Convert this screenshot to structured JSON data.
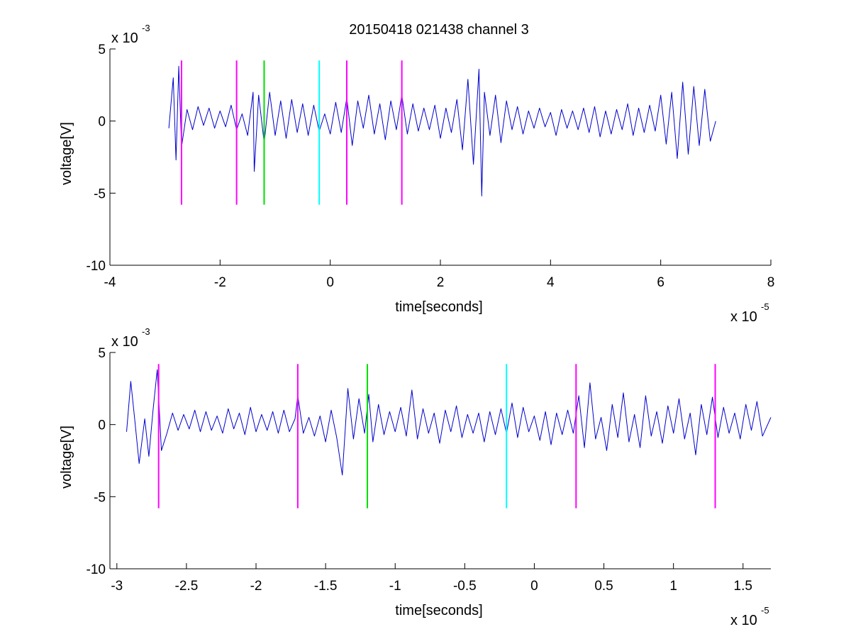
{
  "figure_title": "20150418 021438 channel 3",
  "chart_data": [
    {
      "type": "line",
      "title": "20150418 021438 channel 3",
      "xlabel": "time[seconds]",
      "ylabel": "voltage[V]",
      "x_multiplier_label": "x 10",
      "x_multiplier_exp": "-5",
      "y_multiplier_label": "x 10",
      "y_multiplier_exp": "-3",
      "xlim": [
        -4,
        8
      ],
      "ylim": [
        -10,
        5
      ],
      "xticks": [
        -4,
        -2,
        0,
        2,
        4,
        6,
        8
      ],
      "xtick_labels": [
        "-4",
        "-2",
        "0",
        "2",
        "4",
        "6",
        "8"
      ],
      "yticks": [
        -10,
        -5,
        0,
        5
      ],
      "ytick_labels": [
        "-10",
        "-5",
        "0",
        "5"
      ],
      "grid": false,
      "series": [
        {
          "color": "#0000cc",
          "x": [
            -2.93,
            -2.85,
            -2.8,
            -2.75,
            -2.7,
            -2.6,
            -2.5,
            -2.4,
            -2.3,
            -2.2,
            -2.1,
            -2.0,
            -1.9,
            -1.8,
            -1.7,
            -1.6,
            -1.5,
            -1.4,
            -1.38,
            -1.3,
            -1.2,
            -1.1,
            -1.0,
            -0.9,
            -0.8,
            -0.7,
            -0.6,
            -0.5,
            -0.4,
            -0.3,
            -0.2,
            -0.1,
            0.0,
            0.1,
            0.2,
            0.3,
            0.4,
            0.5,
            0.6,
            0.7,
            0.8,
            0.9,
            1.0,
            1.1,
            1.2,
            1.3,
            1.4,
            1.5,
            1.6,
            1.7,
            1.8,
            1.9,
            2.0,
            2.1,
            2.2,
            2.3,
            2.4,
            2.5,
            2.6,
            2.7,
            2.75,
            2.8,
            2.9,
            3.0,
            3.1,
            3.2,
            3.3,
            3.4,
            3.5,
            3.6,
            3.7,
            3.8,
            3.9,
            4.0,
            4.1,
            4.2,
            4.3,
            4.4,
            4.5,
            4.6,
            4.7,
            4.8,
            4.9,
            5.0,
            5.1,
            5.2,
            5.3,
            5.4,
            5.5,
            5.6,
            5.7,
            5.8,
            5.9,
            6.0,
            6.1,
            6.2,
            6.3,
            6.4,
            6.5,
            6.6,
            6.7,
            6.8,
            6.9,
            7.0
          ],
          "y": [
            -0.5,
            3.0,
            -2.7,
            3.8,
            -1.8,
            0.8,
            -0.6,
            1.0,
            -0.3,
            0.9,
            -0.5,
            0.7,
            -0.4,
            1.1,
            -0.6,
            0.5,
            -1.0,
            2.0,
            -3.5,
            1.8,
            -1.5,
            2.0,
            -1.0,
            1.4,
            -1.2,
            1.5,
            -0.8,
            1.2,
            -1.0,
            1.1,
            -0.7,
            0.5,
            -0.9,
            1.3,
            -0.8,
            1.6,
            -1.7,
            1.4,
            -0.5,
            1.8,
            -0.9,
            1.2,
            -1.3,
            1.4,
            -0.6,
            1.8,
            -0.9,
            1.2,
            -0.7,
            0.9,
            -0.6,
            1.1,
            -1.2,
            0.9,
            -0.8,
            1.5,
            -2.0,
            2.9,
            -3.0,
            3.6,
            -5.2,
            2.0,
            -1.0,
            1.8,
            -1.5,
            1.4,
            -0.6,
            1.0,
            -0.9,
            0.7,
            -0.5,
            0.9,
            -0.4,
            0.6,
            -1.0,
            0.8,
            -0.5,
            0.7,
            -0.6,
            0.9,
            -0.8,
            1.0,
            -1.1,
            0.7,
            -0.9,
            0.8,
            -0.6,
            1.2,
            -1.0,
            0.9,
            -0.8,
            1.1,
            -0.7,
            1.8,
            -1.6,
            2.0,
            -2.6,
            2.7,
            -2.3,
            2.4,
            -1.7,
            2.2,
            -1.4,
            0.0
          ]
        }
      ],
      "markers": [
        {
          "x": -2.7,
          "color": "#ff00ff"
        },
        {
          "x": -1.7,
          "color": "#ff00ff"
        },
        {
          "x": -1.2,
          "color": "#00dd00"
        },
        {
          "x": -0.2,
          "color": "#00ffff"
        },
        {
          "x": 0.3,
          "color": "#ff00ff"
        },
        {
          "x": 1.3,
          "color": "#ff00ff"
        }
      ],
      "marker_ylim": [
        -5.8,
        4.2
      ]
    },
    {
      "type": "line",
      "title": "",
      "xlabel": "time[seconds]",
      "ylabel": "voltage[V]",
      "x_multiplier_label": "x 10",
      "x_multiplier_exp": "-5",
      "y_multiplier_label": "x 10",
      "y_multiplier_exp": "-3",
      "xlim": [
        -3.05,
        1.7
      ],
      "ylim": [
        -10,
        5
      ],
      "xticks": [
        -3,
        -2.5,
        -2,
        -1.5,
        -1,
        -0.5,
        0,
        0.5,
        1,
        1.5
      ],
      "xtick_labels": [
        "-3",
        "-2.5",
        "-2",
        "-1.5",
        "-1",
        "-0.5",
        "0",
        "0.5",
        "1",
        "1.5"
      ],
      "yticks": [
        -10,
        -5,
        0,
        5
      ],
      "ytick_labels": [
        "-10",
        "-5",
        "0",
        "5"
      ],
      "grid": false,
      "series": [
        {
          "color": "#0000cc",
          "x": [
            -2.93,
            -2.9,
            -2.87,
            -2.84,
            -2.8,
            -2.77,
            -2.74,
            -2.71,
            -2.68,
            -2.64,
            -2.6,
            -2.56,
            -2.52,
            -2.48,
            -2.44,
            -2.4,
            -2.36,
            -2.32,
            -2.28,
            -2.24,
            -2.2,
            -2.16,
            -2.12,
            -2.08,
            -2.04,
            -2.0,
            -1.96,
            -1.92,
            -1.88,
            -1.84,
            -1.8,
            -1.76,
            -1.72,
            -1.7,
            -1.66,
            -1.62,
            -1.58,
            -1.54,
            -1.5,
            -1.46,
            -1.42,
            -1.38,
            -1.34,
            -1.3,
            -1.26,
            -1.22,
            -1.19,
            -1.16,
            -1.12,
            -1.08,
            -1.04,
            -1.0,
            -0.96,
            -0.92,
            -0.88,
            -0.84,
            -0.8,
            -0.76,
            -0.72,
            -0.68,
            -0.64,
            -0.6,
            -0.56,
            -0.52,
            -0.48,
            -0.44,
            -0.4,
            -0.36,
            -0.32,
            -0.28,
            -0.24,
            -0.2,
            -0.16,
            -0.12,
            -0.08,
            -0.04,
            0.0,
            0.04,
            0.08,
            0.12,
            0.16,
            0.2,
            0.24,
            0.28,
            0.32,
            0.36,
            0.4,
            0.44,
            0.48,
            0.52,
            0.56,
            0.6,
            0.64,
            0.68,
            0.72,
            0.76,
            0.8,
            0.84,
            0.88,
            0.92,
            0.96,
            1.0,
            1.04,
            1.08,
            1.12,
            1.16,
            1.2,
            1.24,
            1.28,
            1.32,
            1.36,
            1.4,
            1.44,
            1.48,
            1.52,
            1.56,
            1.6,
            1.64,
            1.7
          ],
          "y": [
            -0.5,
            3.0,
            0.2,
            -2.7,
            0.4,
            -2.2,
            1.0,
            3.8,
            -1.8,
            -0.6,
            0.8,
            -0.4,
            0.7,
            -0.3,
            1.0,
            -0.5,
            0.9,
            -0.4,
            0.6,
            -0.6,
            1.1,
            -0.3,
            0.8,
            -0.7,
            1.2,
            -0.5,
            0.7,
            -0.4,
            0.9,
            -0.6,
            1.0,
            -0.5,
            0.4,
            2.0,
            -0.6,
            0.5,
            -0.8,
            0.6,
            -1.2,
            1.0,
            -0.9,
            -3.5,
            2.5,
            -1.0,
            1.8,
            -0.6,
            2.1,
            -1.2,
            1.4,
            -0.7,
            0.9,
            -0.5,
            1.2,
            -0.8,
            2.4,
            -1.0,
            1.1,
            -0.6,
            0.8,
            -1.3,
            1.0,
            -0.5,
            1.3,
            -0.9,
            0.7,
            -0.6,
            0.8,
            -1.2,
            0.9,
            -0.7,
            1.1,
            -0.6,
            1.5,
            -0.9,
            1.2,
            -0.5,
            0.6,
            -1.1,
            0.9,
            -1.4,
            0.8,
            -0.7,
            1.0,
            -0.6,
            2.0,
            -1.6,
            2.9,
            -1.0,
            0.5,
            -1.8,
            1.4,
            -0.9,
            2.2,
            -1.2,
            0.7,
            -1.6,
            2.0,
            -0.8,
            0.9,
            -1.3,
            1.3,
            -0.6,
            1.8,
            -1.0,
            0.8,
            -2.1,
            1.4,
            -0.7,
            1.9,
            -0.9,
            1.2,
            -0.6,
            0.8,
            -1.0,
            1.4,
            -0.4,
            1.6,
            -0.8,
            0.5
          ]
        }
      ],
      "markers": [
        {
          "x": -2.7,
          "color": "#ff00ff"
        },
        {
          "x": -1.7,
          "color": "#ff00ff"
        },
        {
          "x": -1.2,
          "color": "#00dd00"
        },
        {
          "x": -0.2,
          "color": "#00ffff"
        },
        {
          "x": 0.3,
          "color": "#ff00ff"
        },
        {
          "x": 1.3,
          "color": "#ff00ff"
        }
      ],
      "marker_ylim": [
        -5.8,
        4.2
      ]
    }
  ]
}
